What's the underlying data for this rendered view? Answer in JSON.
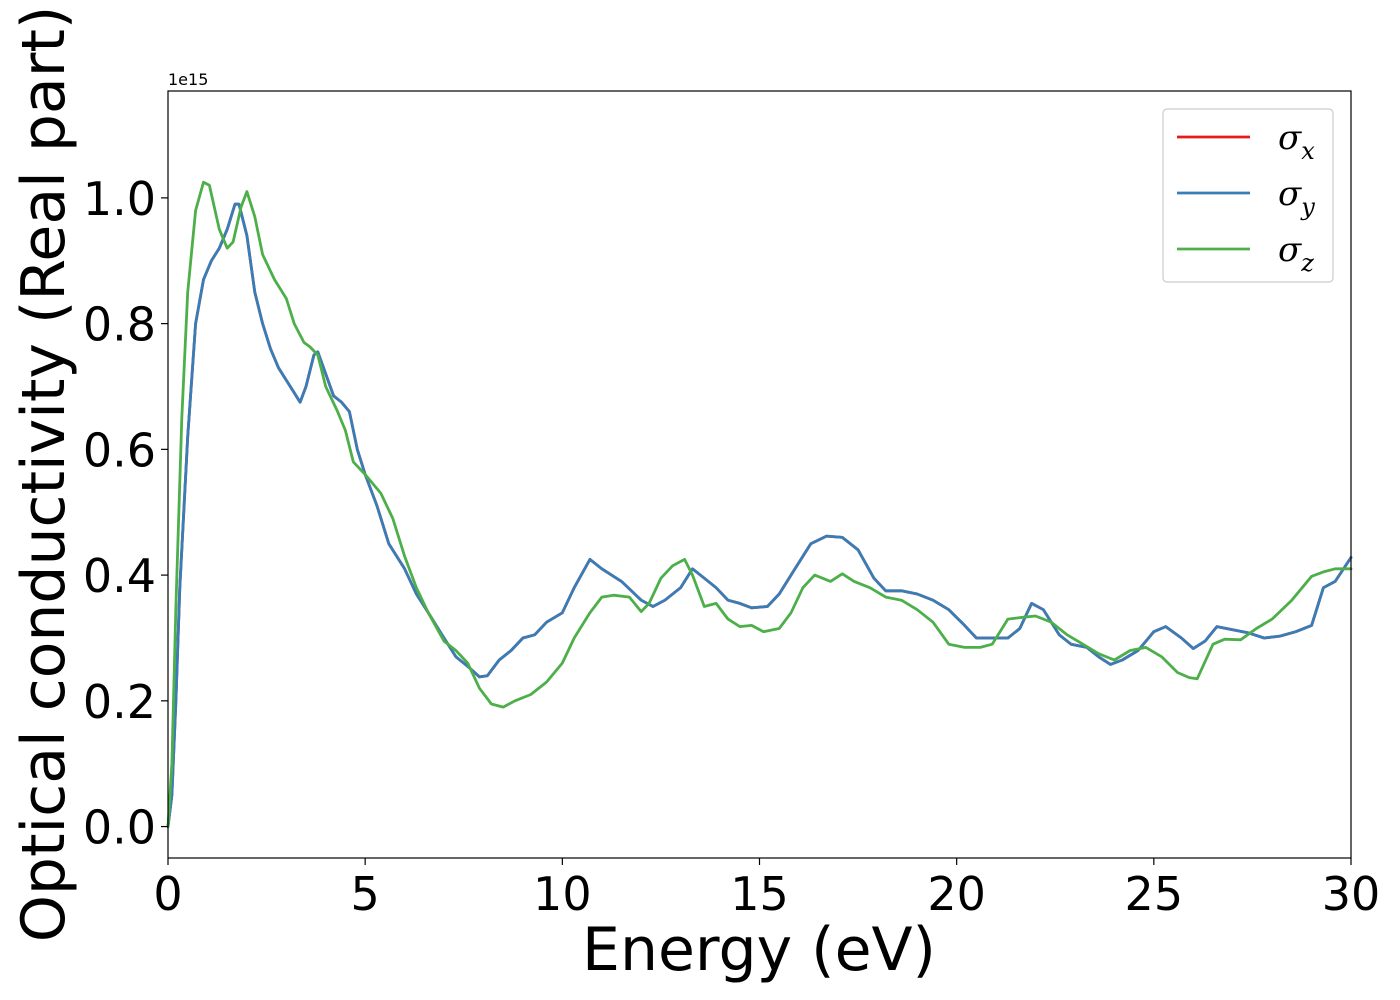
{
  "chart_data": {
    "type": "line",
    "xlabel": "Energy (eV)",
    "ylabel": "Optical conductivity (Real part)",
    "offset_text": "1e15",
    "xlim": [
      0,
      30
    ],
    "ylim": [
      -0.05,
      1.17
    ],
    "xticks": [
      0,
      5,
      10,
      15,
      20,
      25,
      30
    ],
    "xtick_labels": [
      "0",
      "5",
      "10",
      "15",
      "20",
      "25",
      "30"
    ],
    "yticks": [
      0.0,
      0.2,
      0.4,
      0.6,
      0.8,
      1.0
    ],
    "ytick_labels": [
      "0.0",
      "0.2",
      "0.4",
      "0.6",
      "0.8",
      "1.0"
    ],
    "grid": false,
    "legend_position": "top-right",
    "colors": {
      "x": "#e41a1c",
      "y": "#377eb8",
      "z": "#4daf4a"
    },
    "series": [
      {
        "name": "σx",
        "symbol": "σ",
        "subscript": "x",
        "color": "#e41a1c",
        "points": [
          [
            0,
            0
          ],
          [
            0.1,
            0.05
          ],
          [
            0.2,
            0.2
          ],
          [
            0.3,
            0.38
          ],
          [
            0.5,
            0.62
          ],
          [
            0.7,
            0.8
          ],
          [
            0.9,
            0.87
          ],
          [
            1.1,
            0.9
          ],
          [
            1.3,
            0.92
          ],
          [
            1.5,
            0.95
          ],
          [
            1.7,
            0.99
          ],
          [
            1.8,
            0.99
          ],
          [
            2.0,
            0.94
          ],
          [
            2.2,
            0.85
          ],
          [
            2.4,
            0.8
          ],
          [
            2.6,
            0.76
          ],
          [
            2.8,
            0.73
          ],
          [
            3.0,
            0.71
          ],
          [
            3.2,
            0.69
          ],
          [
            3.35,
            0.675
          ],
          [
            3.5,
            0.7
          ],
          [
            3.7,
            0.75
          ],
          [
            3.8,
            0.755
          ],
          [
            4.0,
            0.72
          ],
          [
            4.2,
            0.685
          ],
          [
            4.4,
            0.675
          ],
          [
            4.6,
            0.66
          ],
          [
            4.8,
            0.6
          ],
          [
            5.0,
            0.56
          ],
          [
            5.3,
            0.51
          ],
          [
            5.6,
            0.45
          ],
          [
            6.0,
            0.41
          ],
          [
            6.3,
            0.37
          ],
          [
            6.6,
            0.34
          ],
          [
            7.0,
            0.3
          ],
          [
            7.3,
            0.27
          ],
          [
            7.6,
            0.255
          ],
          [
            7.9,
            0.238
          ],
          [
            8.1,
            0.24
          ],
          [
            8.4,
            0.265
          ],
          [
            8.7,
            0.28
          ],
          [
            9.0,
            0.3
          ],
          [
            9.3,
            0.305
          ],
          [
            9.6,
            0.325
          ],
          [
            10.0,
            0.34
          ],
          [
            10.3,
            0.38
          ],
          [
            10.7,
            0.425
          ],
          [
            11.0,
            0.41
          ],
          [
            11.5,
            0.39
          ],
          [
            12.0,
            0.36
          ],
          [
            12.3,
            0.35
          ],
          [
            12.6,
            0.36
          ],
          [
            13.0,
            0.38
          ],
          [
            13.3,
            0.41
          ],
          [
            13.6,
            0.395
          ],
          [
            13.9,
            0.38
          ],
          [
            14.2,
            0.36
          ],
          [
            14.5,
            0.355
          ],
          [
            14.8,
            0.348
          ],
          [
            15.2,
            0.35
          ],
          [
            15.5,
            0.37
          ],
          [
            15.9,
            0.41
          ],
          [
            16.3,
            0.45
          ],
          [
            16.7,
            0.462
          ],
          [
            17.1,
            0.46
          ],
          [
            17.5,
            0.44
          ],
          [
            17.9,
            0.395
          ],
          [
            18.2,
            0.375
          ],
          [
            18.6,
            0.375
          ],
          [
            19.0,
            0.37
          ],
          [
            19.4,
            0.36
          ],
          [
            19.8,
            0.345
          ],
          [
            20.2,
            0.32
          ],
          [
            20.5,
            0.3
          ],
          [
            20.9,
            0.3
          ],
          [
            21.3,
            0.3
          ],
          [
            21.6,
            0.315
          ],
          [
            21.9,
            0.355
          ],
          [
            22.2,
            0.345
          ],
          [
            22.6,
            0.305
          ],
          [
            22.9,
            0.29
          ],
          [
            23.3,
            0.285
          ],
          [
            23.6,
            0.27
          ],
          [
            23.9,
            0.258
          ],
          [
            24.2,
            0.265
          ],
          [
            24.6,
            0.28
          ],
          [
            25.0,
            0.31
          ],
          [
            25.3,
            0.318
          ],
          [
            25.7,
            0.3
          ],
          [
            26.0,
            0.283
          ],
          [
            26.3,
            0.295
          ],
          [
            26.6,
            0.318
          ],
          [
            27.0,
            0.313
          ],
          [
            27.4,
            0.308
          ],
          [
            27.8,
            0.3
          ],
          [
            28.2,
            0.303
          ],
          [
            28.6,
            0.31
          ],
          [
            29.0,
            0.32
          ],
          [
            29.3,
            0.38
          ],
          [
            29.6,
            0.39
          ],
          [
            30.0,
            0.428
          ]
        ]
      },
      {
        "name": "σy",
        "symbol": "σ",
        "subscript": "y",
        "color": "#377eb8",
        "points": [
          [
            0,
            0
          ],
          [
            0.1,
            0.05
          ],
          [
            0.2,
            0.2
          ],
          [
            0.3,
            0.38
          ],
          [
            0.5,
            0.62
          ],
          [
            0.7,
            0.8
          ],
          [
            0.9,
            0.87
          ],
          [
            1.1,
            0.9
          ],
          [
            1.3,
            0.92
          ],
          [
            1.5,
            0.95
          ],
          [
            1.7,
            0.99
          ],
          [
            1.8,
            0.99
          ],
          [
            2.0,
            0.94
          ],
          [
            2.2,
            0.85
          ],
          [
            2.4,
            0.8
          ],
          [
            2.6,
            0.76
          ],
          [
            2.8,
            0.73
          ],
          [
            3.0,
            0.71
          ],
          [
            3.2,
            0.69
          ],
          [
            3.35,
            0.675
          ],
          [
            3.5,
            0.7
          ],
          [
            3.7,
            0.75
          ],
          [
            3.8,
            0.755
          ],
          [
            4.0,
            0.72
          ],
          [
            4.2,
            0.685
          ],
          [
            4.4,
            0.675
          ],
          [
            4.6,
            0.66
          ],
          [
            4.8,
            0.6
          ],
          [
            5.0,
            0.56
          ],
          [
            5.3,
            0.51
          ],
          [
            5.6,
            0.45
          ],
          [
            6.0,
            0.41
          ],
          [
            6.3,
            0.37
          ],
          [
            6.6,
            0.34
          ],
          [
            7.0,
            0.3
          ],
          [
            7.3,
            0.27
          ],
          [
            7.6,
            0.255
          ],
          [
            7.9,
            0.238
          ],
          [
            8.1,
            0.24
          ],
          [
            8.4,
            0.265
          ],
          [
            8.7,
            0.28
          ],
          [
            9.0,
            0.3
          ],
          [
            9.3,
            0.305
          ],
          [
            9.6,
            0.325
          ],
          [
            10.0,
            0.34
          ],
          [
            10.3,
            0.38
          ],
          [
            10.7,
            0.425
          ],
          [
            11.0,
            0.41
          ],
          [
            11.5,
            0.39
          ],
          [
            12.0,
            0.36
          ],
          [
            12.3,
            0.35
          ],
          [
            12.6,
            0.36
          ],
          [
            13.0,
            0.38
          ],
          [
            13.3,
            0.41
          ],
          [
            13.6,
            0.395
          ],
          [
            13.9,
            0.38
          ],
          [
            14.2,
            0.36
          ],
          [
            14.5,
            0.355
          ],
          [
            14.8,
            0.348
          ],
          [
            15.2,
            0.35
          ],
          [
            15.5,
            0.37
          ],
          [
            15.9,
            0.41
          ],
          [
            16.3,
            0.45
          ],
          [
            16.7,
            0.462
          ],
          [
            17.1,
            0.46
          ],
          [
            17.5,
            0.44
          ],
          [
            17.9,
            0.395
          ],
          [
            18.2,
            0.375
          ],
          [
            18.6,
            0.375
          ],
          [
            19.0,
            0.37
          ],
          [
            19.4,
            0.36
          ],
          [
            19.8,
            0.345
          ],
          [
            20.2,
            0.32
          ],
          [
            20.5,
            0.3
          ],
          [
            20.9,
            0.3
          ],
          [
            21.3,
            0.3
          ],
          [
            21.6,
            0.315
          ],
          [
            21.9,
            0.355
          ],
          [
            22.2,
            0.345
          ],
          [
            22.6,
            0.305
          ],
          [
            22.9,
            0.29
          ],
          [
            23.3,
            0.285
          ],
          [
            23.6,
            0.27
          ],
          [
            23.9,
            0.258
          ],
          [
            24.2,
            0.265
          ],
          [
            24.6,
            0.28
          ],
          [
            25.0,
            0.31
          ],
          [
            25.3,
            0.318
          ],
          [
            25.7,
            0.3
          ],
          [
            26.0,
            0.283
          ],
          [
            26.3,
            0.295
          ],
          [
            26.6,
            0.318
          ],
          [
            27.0,
            0.313
          ],
          [
            27.4,
            0.308
          ],
          [
            27.8,
            0.3
          ],
          [
            28.2,
            0.303
          ],
          [
            28.6,
            0.31
          ],
          [
            29.0,
            0.32
          ],
          [
            29.3,
            0.38
          ],
          [
            29.6,
            0.39
          ],
          [
            30.0,
            0.428
          ]
        ]
      },
      {
        "name": "σz",
        "symbol": "σ",
        "subscript": "z",
        "color": "#4daf4a",
        "points": [
          [
            0,
            0
          ],
          [
            0.1,
            0.1
          ],
          [
            0.2,
            0.35
          ],
          [
            0.35,
            0.65
          ],
          [
            0.5,
            0.85
          ],
          [
            0.7,
            0.98
          ],
          [
            0.9,
            1.025
          ],
          [
            1.05,
            1.02
          ],
          [
            1.3,
            0.95
          ],
          [
            1.5,
            0.92
          ],
          [
            1.65,
            0.93
          ],
          [
            1.85,
            0.985
          ],
          [
            2.0,
            1.01
          ],
          [
            2.2,
            0.97
          ],
          [
            2.4,
            0.91
          ],
          [
            2.7,
            0.87
          ],
          [
            3.0,
            0.84
          ],
          [
            3.2,
            0.8
          ],
          [
            3.45,
            0.77
          ],
          [
            3.6,
            0.763
          ],
          [
            3.8,
            0.75
          ],
          [
            4.0,
            0.7
          ],
          [
            4.3,
            0.66
          ],
          [
            4.5,
            0.63
          ],
          [
            4.7,
            0.58
          ],
          [
            5.0,
            0.56
          ],
          [
            5.4,
            0.53
          ],
          [
            5.7,
            0.49
          ],
          [
            6.0,
            0.43
          ],
          [
            6.3,
            0.38
          ],
          [
            6.6,
            0.34
          ],
          [
            7.0,
            0.295
          ],
          [
            7.3,
            0.28
          ],
          [
            7.6,
            0.26
          ],
          [
            7.9,
            0.22
          ],
          [
            8.2,
            0.195
          ],
          [
            8.5,
            0.19
          ],
          [
            8.8,
            0.2
          ],
          [
            9.2,
            0.21
          ],
          [
            9.6,
            0.23
          ],
          [
            10.0,
            0.26
          ],
          [
            10.3,
            0.3
          ],
          [
            10.7,
            0.34
          ],
          [
            11.0,
            0.365
          ],
          [
            11.3,
            0.368
          ],
          [
            11.7,
            0.365
          ],
          [
            12.0,
            0.342
          ],
          [
            12.2,
            0.355
          ],
          [
            12.5,
            0.395
          ],
          [
            12.8,
            0.415
          ],
          [
            13.1,
            0.425
          ],
          [
            13.3,
            0.4
          ],
          [
            13.6,
            0.35
          ],
          [
            13.9,
            0.355
          ],
          [
            14.2,
            0.33
          ],
          [
            14.5,
            0.318
          ],
          [
            14.8,
            0.32
          ],
          [
            15.1,
            0.31
          ],
          [
            15.5,
            0.315
          ],
          [
            15.8,
            0.34
          ],
          [
            16.1,
            0.38
          ],
          [
            16.4,
            0.4
          ],
          [
            16.8,
            0.39
          ],
          [
            17.1,
            0.402
          ],
          [
            17.4,
            0.39
          ],
          [
            17.8,
            0.38
          ],
          [
            18.2,
            0.365
          ],
          [
            18.6,
            0.36
          ],
          [
            19.0,
            0.345
          ],
          [
            19.4,
            0.325
          ],
          [
            19.8,
            0.29
          ],
          [
            20.2,
            0.285
          ],
          [
            20.6,
            0.285
          ],
          [
            20.9,
            0.29
          ],
          [
            21.3,
            0.33
          ],
          [
            21.7,
            0.333
          ],
          [
            22.0,
            0.335
          ],
          [
            22.4,
            0.325
          ],
          [
            22.8,
            0.305
          ],
          [
            23.2,
            0.29
          ],
          [
            23.6,
            0.275
          ],
          [
            24.0,
            0.265
          ],
          [
            24.4,
            0.28
          ],
          [
            24.8,
            0.285
          ],
          [
            25.2,
            0.27
          ],
          [
            25.6,
            0.245
          ],
          [
            25.9,
            0.237
          ],
          [
            26.1,
            0.235
          ],
          [
            26.5,
            0.29
          ],
          [
            26.8,
            0.298
          ],
          [
            27.2,
            0.297
          ],
          [
            27.6,
            0.315
          ],
          [
            28.0,
            0.33
          ],
          [
            28.5,
            0.36
          ],
          [
            29.0,
            0.398
          ],
          [
            29.3,
            0.405
          ],
          [
            29.6,
            0.41
          ],
          [
            30.0,
            0.41
          ]
        ]
      }
    ]
  }
}
